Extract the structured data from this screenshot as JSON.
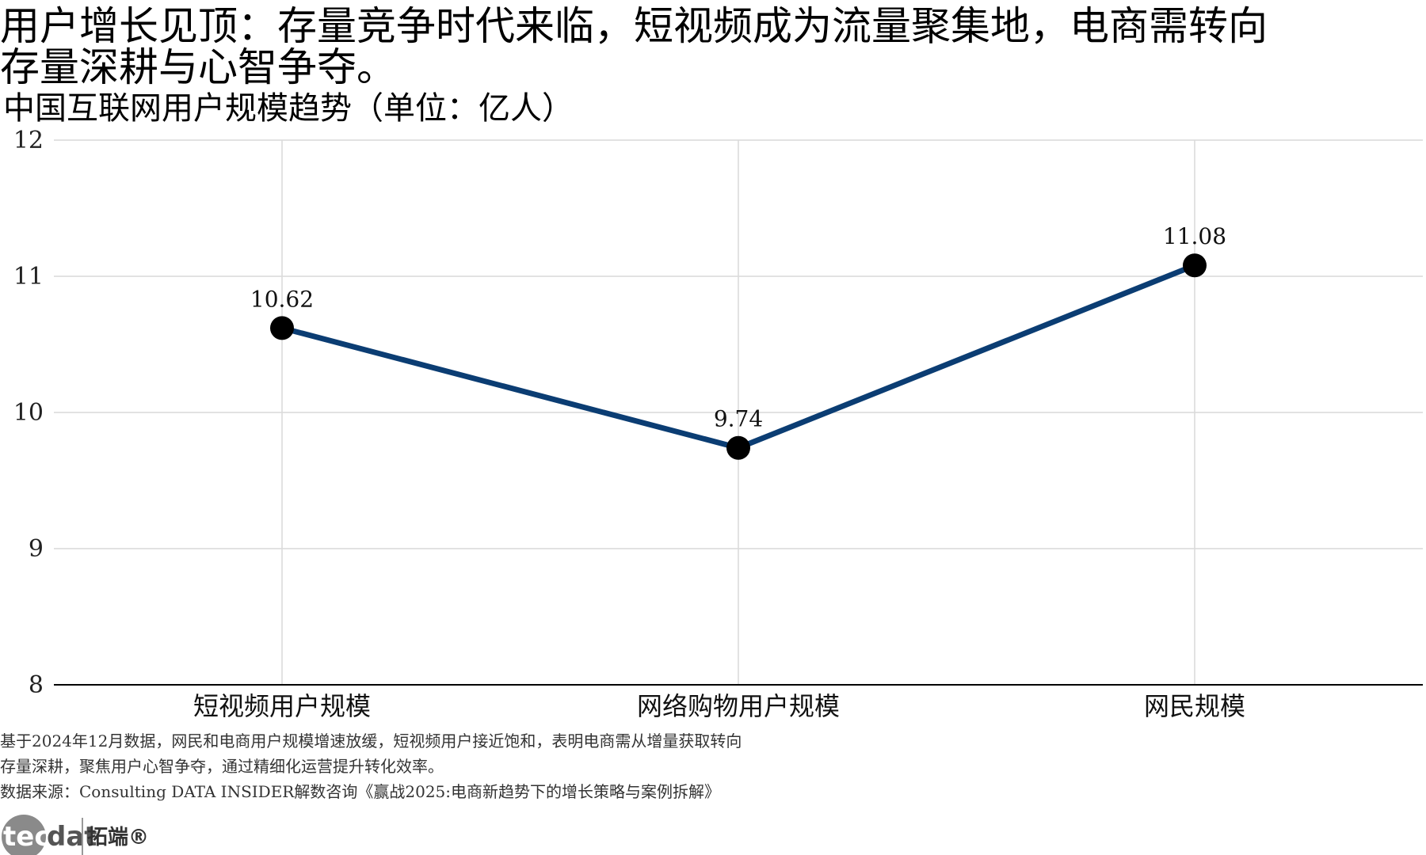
{
  "header": {
    "title_line1": "用户增长见顶：存量竞争时代来临，短视频成为流量聚集地，电商需转向",
    "title_line2": "存量深耕与心智争夺。",
    "subtitle": "中国互联网用户规模趋势（单位：亿人）"
  },
  "chart_data": {
    "type": "line",
    "title": "中国互联网用户规模趋势（单位：亿人）",
    "categories": [
      "短视频用户规模",
      "网络购物用户规模",
      "网民规模"
    ],
    "series": [
      {
        "values": [
          10.62,
          9.74,
          11.08
        ],
        "data_labels": [
          "10.62",
          "9.74",
          "11.08"
        ]
      }
    ],
    "ylim": [
      8,
      12
    ],
    "yticks": [
      8,
      9,
      10,
      11,
      12
    ],
    "grid": true,
    "legend": "none",
    "colors": {
      "line": "#0b3d73",
      "marker": "#000000",
      "grid": "#d9d9d9",
      "axis": "#000000"
    }
  },
  "notes": {
    "line1": "基于2024年12月数据，网民和电商用户规模增速放缓，短视频用户接近饱和，表明电商需从增量获取转向",
    "line2": "存量深耕，聚焦用户心智争夺，通过精细化运营提升转化效率。",
    "source": "数据来源：Consulting DATA INSIDER解数咨询《赢战2025:电商新趋势下的增长策略与案例拆解》"
  },
  "logo": {
    "brand_prefix": "tec",
    "brand_suffix": "dat",
    "brand_cn": "拓端®"
  }
}
